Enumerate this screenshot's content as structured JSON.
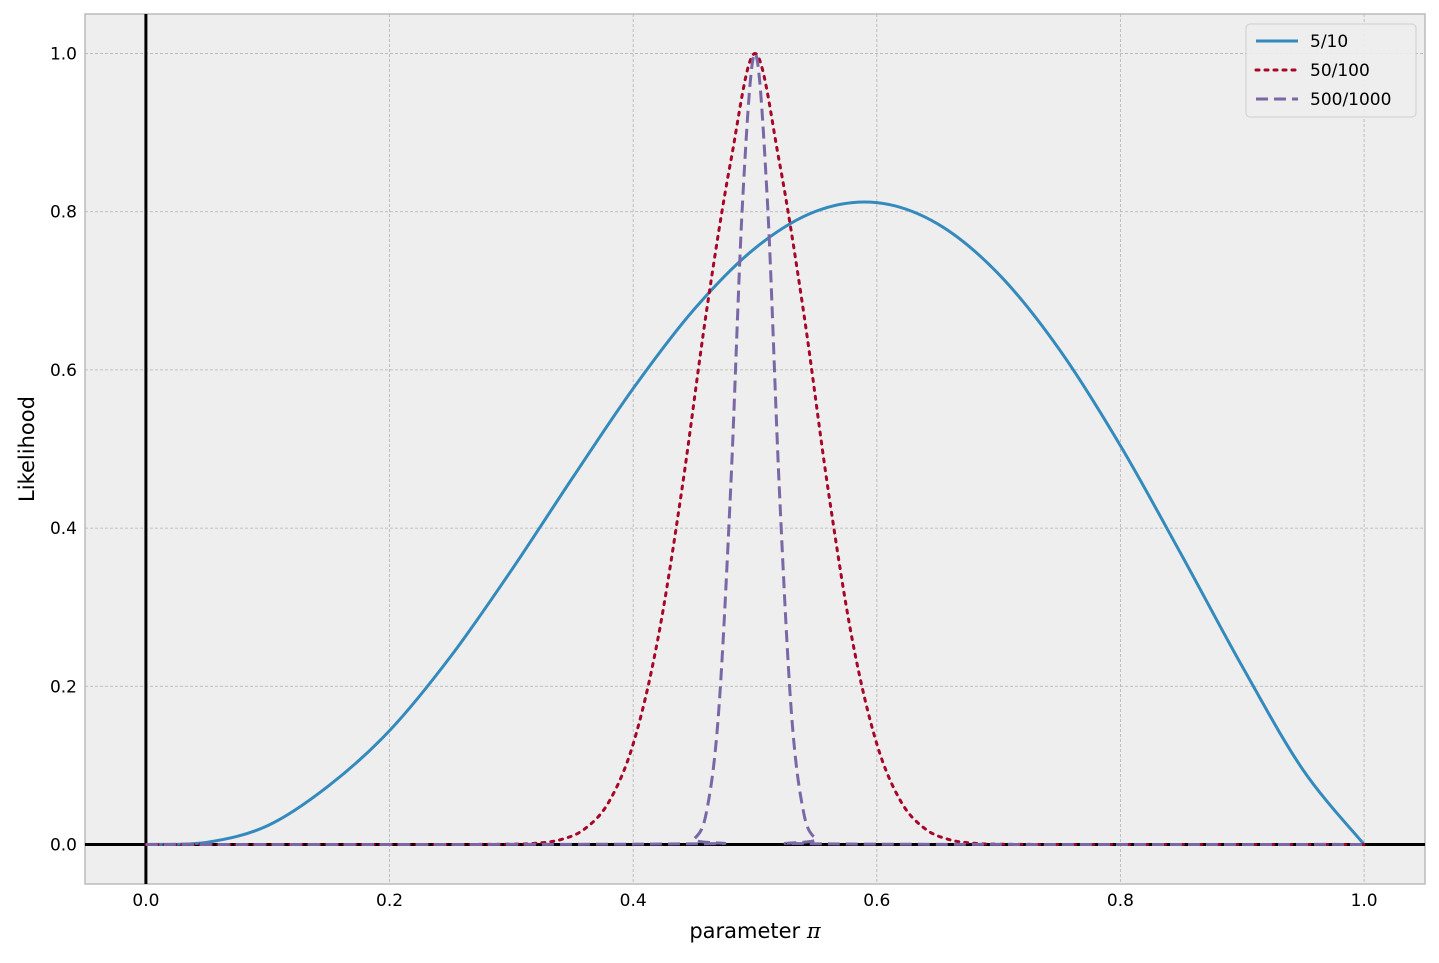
{
  "chart_data": {
    "type": "line",
    "title": "",
    "xlabel": "parameter",
    "xlabel_symbol": "π",
    "ylabel": "Likelihood",
    "xlim": [
      -0.05,
      1.05
    ],
    "ylim": [
      -0.05,
      1.05
    ],
    "xticks": [
      0.0,
      0.2,
      0.4,
      0.6,
      0.8,
      1.0
    ],
    "xtick_labels": [
      "0.0",
      "0.2",
      "0.4",
      "0.6",
      "0.8",
      "1.0"
    ],
    "yticks": [
      0.0,
      0.2,
      0.4,
      0.6,
      0.8,
      1.0
    ],
    "ytick_labels": [
      "0.0",
      "0.2",
      "0.4",
      "0.6",
      "0.8",
      "1.0"
    ],
    "grid": true,
    "legend_position": "top-right",
    "reference_lines": {
      "x": 0,
      "y": 0
    },
    "series": [
      {
        "name": "5/10",
        "color": "#348ABD",
        "style": "solid",
        "x": [
          0.0,
          0.05,
          0.1,
          0.15,
          0.2,
          0.25,
          0.3,
          0.35,
          0.4,
          0.45,
          0.5,
          0.55,
          0.6,
          0.65,
          0.7,
          0.75,
          0.8,
          0.85,
          0.9,
          0.95,
          1.0
        ],
        "y": [
          0.0,
          0.0027,
          0.0238,
          0.0741,
          0.1439,
          0.2373,
          0.3466,
          0.463,
          0.5765,
          0.6765,
          0.7538,
          0.8006,
          0.8115,
          0.7846,
          0.7212,
          0.6255,
          0.5041,
          0.3665,
          0.225,
          0.094,
          0.0
        ]
      },
      {
        "name": "50/100",
        "color": "#A60628",
        "style": "dotted",
        "x": [
          0.0,
          0.25,
          0.3,
          0.32,
          0.34,
          0.36,
          0.38,
          0.4,
          0.42,
          0.44,
          0.46,
          0.48,
          0.5,
          0.52,
          0.54,
          0.56,
          0.58,
          0.6,
          0.62,
          0.64,
          0.66,
          0.68,
          0.7,
          0.75,
          1.0
        ],
        "y": [
          0.0,
          0.0,
          0.0003,
          0.0015,
          0.0059,
          0.0194,
          0.0537,
          0.1271,
          0.2576,
          0.4489,
          0.6721,
          0.863,
          1.0,
          0.863,
          0.6721,
          0.4489,
          0.2576,
          0.1271,
          0.0537,
          0.0194,
          0.0059,
          0.0015,
          0.0003,
          0.0,
          0.0
        ]
      },
      {
        "name": "500/1000",
        "color": "#7A68A6",
        "style": "dashed",
        "x": [
          0.0,
          0.44,
          0.45,
          0.46,
          0.47,
          0.48,
          0.49,
          0.5,
          0.51,
          0.52,
          0.53,
          0.54,
          0.55,
          0.56,
          1.0
        ],
        "y": [
          0.0,
          0.0007,
          0.0067,
          0.0398,
          0.1643,
          0.449,
          0.8185,
          1.0,
          0.8185,
          0.449,
          0.1643,
          0.0398,
          0.0067,
          0.0007,
          0.0
        ]
      }
    ]
  }
}
